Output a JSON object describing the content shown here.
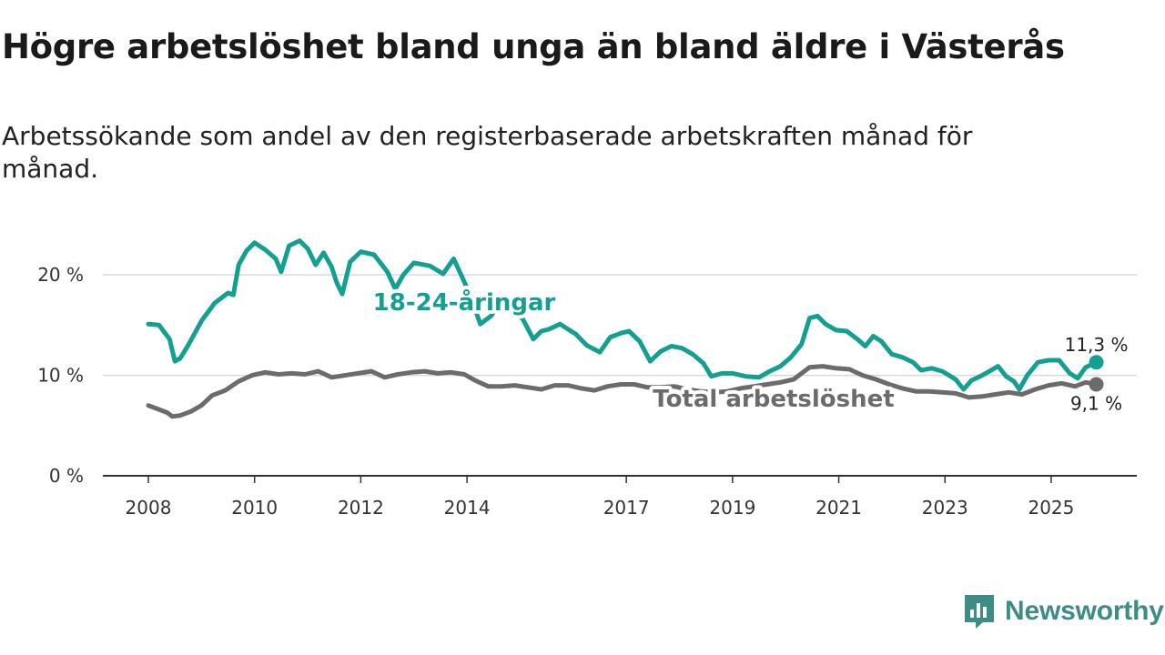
{
  "title": "Högre arbetslöshet bland unga än bland äldre i Västerås",
  "subtitle": "Arbetssökande som andel av den registerbaserade arbetskraften månad för månad.",
  "brand": {
    "name": "Newsworthy",
    "color": "#3d8d86"
  },
  "chart_data": {
    "type": "line",
    "title": "Högre arbetslöshet bland unga än bland äldre i Västerås",
    "subtitle": "Arbetssökande som andel av den registerbaserade arbetskraften månad för månad.",
    "xlabel": "",
    "ylabel": "",
    "xlim": [
      2008.0,
      2026.7
    ],
    "ylim": [
      0,
      23
    ],
    "y_ticks": [
      {
        "value": 0,
        "label": "0 %"
      },
      {
        "value": 10,
        "label": "10 %"
      },
      {
        "value": 20,
        "label": "20 %"
      }
    ],
    "x_ticks": [
      {
        "value": 2008,
        "label": "2008"
      },
      {
        "value": 2010,
        "label": "2010"
      },
      {
        "value": 2012,
        "label": "2012"
      },
      {
        "value": 2014,
        "label": "2014"
      },
      {
        "value": 2017,
        "label": "2017"
      },
      {
        "value": 2019,
        "label": "2019"
      },
      {
        "value": 2021,
        "label": "2021"
      },
      {
        "value": 2023,
        "label": "2023"
      },
      {
        "value": 2025,
        "label": "2025"
      }
    ],
    "grid": true,
    "series": [
      {
        "name": "18-24-åringar",
        "label": "18-24-åringar",
        "color": "#14a090",
        "end_label": "11,3 %",
        "points": [
          [
            2008.0,
            15.1
          ],
          [
            2008.2,
            15.0
          ],
          [
            2008.4,
            13.6
          ],
          [
            2008.5,
            11.4
          ],
          [
            2008.6,
            11.7
          ],
          [
            2008.75,
            13.0
          ],
          [
            2009.0,
            15.4
          ],
          [
            2009.25,
            17.2
          ],
          [
            2009.5,
            18.2
          ],
          [
            2009.6,
            18.0
          ],
          [
            2009.7,
            21.0
          ],
          [
            2009.85,
            22.4
          ],
          [
            2010.0,
            23.2
          ],
          [
            2010.2,
            22.5
          ],
          [
            2010.4,
            21.6
          ],
          [
            2010.5,
            20.3
          ],
          [
            2010.65,
            22.9
          ],
          [
            2010.85,
            23.4
          ],
          [
            2011.0,
            22.6
          ],
          [
            2011.15,
            21.0
          ],
          [
            2011.3,
            22.2
          ],
          [
            2011.45,
            20.8
          ],
          [
            2011.55,
            19.2
          ],
          [
            2011.65,
            18.1
          ],
          [
            2011.8,
            21.3
          ],
          [
            2012.0,
            22.3
          ],
          [
            2012.25,
            22.0
          ],
          [
            2012.5,
            20.3
          ],
          [
            2012.65,
            18.6
          ],
          [
            2012.8,
            20.0
          ],
          [
            2013.0,
            21.2
          ],
          [
            2013.3,
            20.9
          ],
          [
            2013.55,
            20.1
          ],
          [
            2013.75,
            21.6
          ],
          [
            2013.95,
            19.3
          ],
          [
            2014.1,
            17.4
          ],
          [
            2014.25,
            15.1
          ],
          [
            2014.45,
            15.9
          ],
          [
            2014.6,
            17.0
          ],
          [
            2014.85,
            16.5
          ],
          [
            2015.05,
            15.6
          ],
          [
            2015.25,
            13.6
          ],
          [
            2015.4,
            14.4
          ],
          [
            2015.55,
            14.6
          ],
          [
            2015.75,
            15.1
          ],
          [
            2015.9,
            14.6
          ],
          [
            2016.05,
            14.1
          ],
          [
            2016.25,
            13.0
          ],
          [
            2016.5,
            12.3
          ],
          [
            2016.7,
            13.8
          ],
          [
            2016.9,
            14.2
          ],
          [
            2017.05,
            14.4
          ],
          [
            2017.25,
            13.4
          ],
          [
            2017.45,
            11.4
          ],
          [
            2017.65,
            12.4
          ],
          [
            2017.85,
            12.9
          ],
          [
            2018.05,
            12.7
          ],
          [
            2018.25,
            12.1
          ],
          [
            2018.45,
            11.2
          ],
          [
            2018.6,
            9.9
          ],
          [
            2018.8,
            10.2
          ],
          [
            2019.0,
            10.2
          ],
          [
            2019.25,
            9.9
          ],
          [
            2019.5,
            9.8
          ],
          [
            2019.7,
            10.4
          ],
          [
            2019.9,
            10.9
          ],
          [
            2020.1,
            11.8
          ],
          [
            2020.3,
            13.1
          ],
          [
            2020.45,
            15.7
          ],
          [
            2020.6,
            15.9
          ],
          [
            2020.75,
            15.1
          ],
          [
            2020.95,
            14.5
          ],
          [
            2021.15,
            14.4
          ],
          [
            2021.35,
            13.6
          ],
          [
            2021.5,
            12.9
          ],
          [
            2021.65,
            13.9
          ],
          [
            2021.8,
            13.4
          ],
          [
            2022.0,
            12.1
          ],
          [
            2022.2,
            11.8
          ],
          [
            2022.4,
            11.3
          ],
          [
            2022.55,
            10.5
          ],
          [
            2022.75,
            10.7
          ],
          [
            2022.95,
            10.4
          ],
          [
            2023.2,
            9.6
          ],
          [
            2023.35,
            8.6
          ],
          [
            2023.5,
            9.5
          ],
          [
            2023.7,
            10.0
          ],
          [
            2023.9,
            10.6
          ],
          [
            2024.0,
            10.9
          ],
          [
            2024.15,
            9.9
          ],
          [
            2024.3,
            9.4
          ],
          [
            2024.4,
            8.6
          ],
          [
            2024.55,
            10.0
          ],
          [
            2024.75,
            11.3
          ],
          [
            2024.95,
            11.5
          ],
          [
            2025.15,
            11.5
          ],
          [
            2025.35,
            10.2
          ],
          [
            2025.5,
            9.7
          ],
          [
            2025.65,
            10.8
          ],
          [
            2025.85,
            11.3
          ]
        ]
      },
      {
        "name": "Total arbetslöshet",
        "label": "Total arbetslöshet",
        "color": "#6d6a6b",
        "end_label": "9,1 %",
        "points": [
          [
            2008.0,
            7.0
          ],
          [
            2008.2,
            6.6
          ],
          [
            2008.35,
            6.3
          ],
          [
            2008.45,
            5.9
          ],
          [
            2008.6,
            6.0
          ],
          [
            2008.8,
            6.4
          ],
          [
            2009.0,
            7.0
          ],
          [
            2009.2,
            8.0
          ],
          [
            2009.45,
            8.5
          ],
          [
            2009.7,
            9.4
          ],
          [
            2009.95,
            10.0
          ],
          [
            2010.2,
            10.3
          ],
          [
            2010.45,
            10.1
          ],
          [
            2010.7,
            10.2
          ],
          [
            2010.95,
            10.1
          ],
          [
            2011.2,
            10.4
          ],
          [
            2011.45,
            9.8
          ],
          [
            2011.7,
            10.0
          ],
          [
            2011.95,
            10.2
          ],
          [
            2012.2,
            10.4
          ],
          [
            2012.45,
            9.8
          ],
          [
            2012.7,
            10.1
          ],
          [
            2012.95,
            10.3
          ],
          [
            2013.2,
            10.4
          ],
          [
            2013.45,
            10.2
          ],
          [
            2013.7,
            10.3
          ],
          [
            2013.95,
            10.1
          ],
          [
            2014.15,
            9.5
          ],
          [
            2014.4,
            8.9
          ],
          [
            2014.65,
            8.9
          ],
          [
            2014.9,
            9.0
          ],
          [
            2015.15,
            8.8
          ],
          [
            2015.4,
            8.6
          ],
          [
            2015.65,
            9.0
          ],
          [
            2015.9,
            9.0
          ],
          [
            2016.15,
            8.7
          ],
          [
            2016.4,
            8.5
          ],
          [
            2016.65,
            8.9
          ],
          [
            2016.9,
            9.1
          ],
          [
            2017.15,
            9.1
          ],
          [
            2017.4,
            8.8
          ],
          [
            2017.65,
            8.8
          ],
          [
            2017.9,
            8.9
          ],
          [
            2018.15,
            8.6
          ],
          [
            2018.4,
            8.4
          ],
          [
            2018.65,
            8.3
          ],
          [
            2018.9,
            8.4
          ],
          [
            2019.15,
            8.7
          ],
          [
            2019.4,
            8.9
          ],
          [
            2019.65,
            9.1
          ],
          [
            2019.9,
            9.3
          ],
          [
            2020.15,
            9.6
          ],
          [
            2020.45,
            10.8
          ],
          [
            2020.7,
            10.9
          ],
          [
            2020.95,
            10.7
          ],
          [
            2021.2,
            10.6
          ],
          [
            2021.45,
            10.0
          ],
          [
            2021.7,
            9.6
          ],
          [
            2021.95,
            9.1
          ],
          [
            2022.2,
            8.7
          ],
          [
            2022.45,
            8.4
          ],
          [
            2022.7,
            8.4
          ],
          [
            2022.95,
            8.3
          ],
          [
            2023.2,
            8.2
          ],
          [
            2023.45,
            7.8
          ],
          [
            2023.7,
            7.9
          ],
          [
            2023.95,
            8.1
          ],
          [
            2024.2,
            8.3
          ],
          [
            2024.45,
            8.1
          ],
          [
            2024.7,
            8.6
          ],
          [
            2024.95,
            9.0
          ],
          [
            2025.2,
            9.2
          ],
          [
            2025.45,
            8.9
          ],
          [
            2025.65,
            9.3
          ],
          [
            2025.85,
            9.1
          ]
        ]
      }
    ]
  }
}
